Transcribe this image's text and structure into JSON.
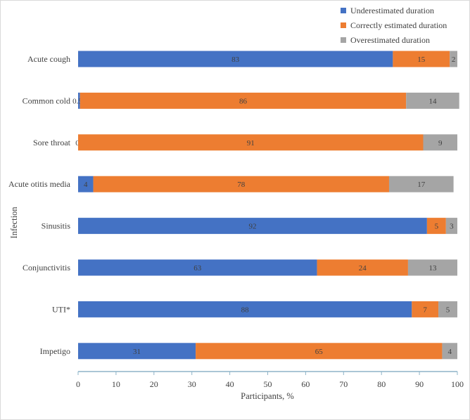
{
  "chart_data": {
    "type": "bar",
    "orientation": "horizontal",
    "stacked": true,
    "title": "",
    "xlabel": "Participants, %",
    "ylabel": "Infection",
    "xlim": [
      0,
      100
    ],
    "xticks": [
      0,
      10,
      20,
      30,
      40,
      50,
      60,
      70,
      80,
      90,
      100
    ],
    "categories": [
      "Acute cough",
      "Common cold",
      "Sore throat",
      "Acute otitis media",
      "Sinusitis",
      "Conjunctivitis",
      "UTI*",
      "Impetigo"
    ],
    "series": [
      {
        "name": "Underestimated duration",
        "color": "#4472c4",
        "values": [
          83,
          0.5,
          0,
          4,
          92,
          63,
          88,
          31
        ],
        "labels": [
          "83",
          "0.5",
          "0",
          "4",
          "92",
          "63",
          "88",
          "31"
        ]
      },
      {
        "name": "Correctly estimated duration",
        "color": "#ed7d31",
        "values": [
          15,
          86,
          91,
          78,
          5,
          24,
          7,
          65
        ],
        "labels": [
          "15",
          "86",
          "91",
          "78",
          "5",
          "24",
          "7",
          "65"
        ]
      },
      {
        "name": "Overestimated duration",
        "color": "#a5a5a5",
        "values": [
          2,
          14,
          9,
          17,
          3,
          13,
          5,
          4
        ],
        "labels": [
          "2",
          "14",
          "9",
          "17",
          "3",
          "13",
          "5",
          "4"
        ]
      }
    ],
    "legend_position": "top-right",
    "grid": false
  }
}
